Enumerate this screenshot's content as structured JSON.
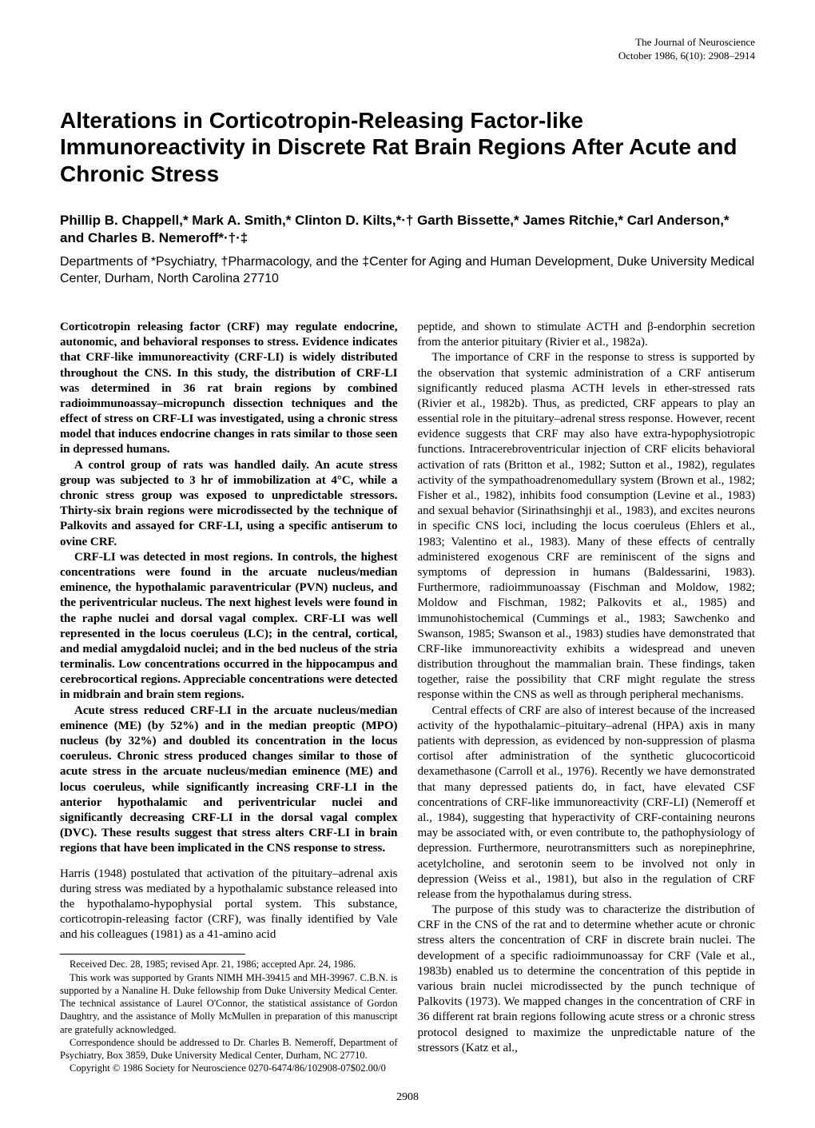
{
  "journal": {
    "name": "The Journal of Neuroscience",
    "issue": "October 1986, 6(10): 2908–2914"
  },
  "title": "Alterations in Corticotropin-Releasing Factor-like Immunoreactivity in Discrete Rat Brain Regions After Acute and Chronic Stress",
  "authors": "Phillip B. Chappell,* Mark A. Smith,* Clinton D. Kilts,*·† Garth Bissette,* James Ritchie,* Carl Anderson,* and Charles B. Nemeroff*·†·‡",
  "affiliations": "Departments of *Psychiatry, †Pharmacology, and the ‡Center for Aging and Human Development, Duke University Medical Center, Durham, North Carolina 27710",
  "abstract": {
    "p1": "Corticotropin releasing factor (CRF) may regulate endocrine, autonomic, and behavioral responses to stress. Evidence indicates that CRF-like immunoreactivity (CRF-LI) is widely distributed throughout the CNS. In this study, the distribution of CRF-LI was determined in 36 rat brain regions by combined radioimmunoassay–micropunch dissection techniques and the effect of stress on CRF-LI was investigated, using a chronic stress model that induces endocrine changes in rats similar to those seen in depressed humans.",
    "p2": "A control group of rats was handled daily. An acute stress group was subjected to 3 hr of immobilization at 4°C, while a chronic stress group was exposed to unpredictable stressors. Thirty-six brain regions were microdissected by the technique of Palkovits and assayed for CRF-LI, using a specific antiserum to ovine CRF.",
    "p3": "CRF-LI was detected in most regions. In controls, the highest concentrations were found in the arcuate nucleus/median eminence, the hypothalamic paraventricular (PVN) nucleus, and the periventricular nucleus. The next highest levels were found in the raphe nuclei and dorsal vagal complex. CRF-LI was well represented in the locus coeruleus (LC); in the central, cortical, and medial amygdaloid nuclei; and in the bed nucleus of the stria terminalis. Low concentrations occurred in the hippocampus and cerebrocortical regions. Appreciable concentrations were detected in midbrain and brain stem regions.",
    "p4": "Acute stress reduced CRF-LI in the arcuate nucleus/median eminence (ME) (by 52%) and in the median preoptic (MPO) nucleus (by 32%) and doubled its concentration in the locus coeruleus. Chronic stress produced changes similar to those of acute stress in the arcuate nucleus/median eminence (ME) and locus coeruleus, while significantly increasing CRF-LI in the anterior hypothalamic and periventricular nuclei and significantly decreasing CRF-LI in the dorsal vagal complex (DVC). These results suggest that stress alters CRF-LI in brain regions that have been implicated in the CNS response to stress."
  },
  "intro": {
    "p1": "Harris (1948) postulated that activation of the pituitary–adrenal axis during stress was mediated by a hypothalamic substance released into the hypothalamo-hypophysial portal system. This substance, corticotropin-releasing factor (CRF), was finally identified by Vale and his colleagues (1981) as a 41-amino acid"
  },
  "footer": {
    "received": "Received Dec. 28, 1985; revised Apr. 21, 1986; accepted Apr. 24, 1986.",
    "support": "This work was supported by Grants NIMH MH-39415 and MH-39967. C.B.N. is supported by a Nanaline H. Duke fellowship from Duke University Medical Center. The technical assistance of Laurel O'Connor, the statistical assistance of Gordon Daughtry, and the assistance of Molly McMullen in preparation of this manuscript are gratefully acknowledged.",
    "correspondence": "Correspondence should be addressed to Dr. Charles B. Nemeroff, Department of Psychiatry, Box 3859, Duke University Medical Center, Durham, NC 27710.",
    "copyright": "Copyright © 1986 Society for Neuroscience 0270-6474/86/102908-07$02.00/0"
  },
  "rightcol": {
    "p0": "peptide, and shown to stimulate ACTH and β-endorphin secretion from the anterior pituitary (Rivier et al., 1982a).",
    "p1": "The importance of CRF in the response to stress is supported by the observation that systemic administration of a CRF antiserum significantly reduced plasma ACTH levels in ether-stressed rats (Rivier et al., 1982b). Thus, as predicted, CRF appears to play an essential role in the pituitary–adrenal stress response. However, recent evidence suggests that CRF may also have extra-hypophysiotropic functions. Intracerebroventricular injection of CRF elicits behavioral activation of rats (Britton et al., 1982; Sutton et al., 1982), regulates activity of the sympathoadrenomedullary system (Brown et al., 1982; Fisher et al., 1982), inhibits food consumption (Levine et al., 1983) and sexual behavior (Sirinathsinghji et al., 1983), and excites neurons in specific CNS loci, including the locus coeruleus (Ehlers et al., 1983; Valentino et al., 1983). Many of these effects of centrally administered exogenous CRF are reminiscent of the signs and symptoms of depression in humans (Baldessarini, 1983). Furthermore, radioimmunoassay (Fischman and Moldow, 1982; Moldow and Fischman, 1982; Palkovits et al., 1985) and immunohistochemical (Cummings et al., 1983; Sawchenko and Swanson, 1985; Swanson et al., 1983) studies have demonstrated that CRF-like immunoreactivity exhibits a widespread and uneven distribution throughout the mammalian brain. These findings, taken together, raise the possibility that CRF might regulate the stress response within the CNS as well as through peripheral mechanisms.",
    "p2": "Central effects of CRF are also of interest because of the increased activity of the hypothalamic–pituitary–adrenal (HPA) axis in many patients with depression, as evidenced by non-suppression of plasma cortisol after administration of the synthetic glucocorticoid dexamethasone (Carroll et al., 1976). Recently we have demonstrated that many depressed patients do, in fact, have elevated CSF concentrations of CRF-like immunoreactivity (CRF-LI) (Nemeroff et al., 1984), suggesting that hyperactivity of CRF-containing neurons may be associated with, or even contribute to, the pathophysiology of depression. Furthermore, neurotransmitters such as norepinephrine, acetylcholine, and serotonin seem to be involved not only in depression (Weiss et al., 1981), but also in the regulation of CRF release from the hypothalamus during stress.",
    "p3": "The purpose of this study was to characterize the distribution of CRF in the CNS of the rat and to determine whether acute or chronic stress alters the concentration of CRF in discrete brain nuclei. The development of a specific radioimmunoassay for CRF (Vale et al., 1983b) enabled us to determine the concentration of this peptide in various brain nuclei microdissected by the punch technique of Palkovits (1973). We mapped changes in the concentration of CRF in 36 different rat brain regions following acute stress or a chronic stress protocol designed to maximize the unpredictable nature of the stressors (Katz et al.,"
  },
  "pageNumber": "2908"
}
